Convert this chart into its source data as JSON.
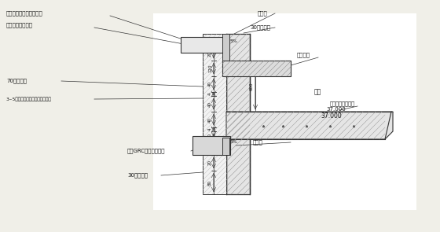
{
  "bg_color": "#f0efe8",
  "line_color": "#333333",
  "labels": {
    "top_left1": "成品聚苯板外墙装饰檐线",
    "top_left2": "装饰檐线轻钙支架",
    "mid_left1": "70厚岁棉板",
    "mid_left2": "3~5厚抚灰面层贴山东金属网格布",
    "bot_left1": "成品GRC外墙装饰檐线",
    "bot_left2": "30厚聚苯板",
    "top_mid1": "窗附框",
    "top_mid2": "30厚聚苯板",
    "right1": "面砖窗台",
    "right2": "卧室",
    "right3": "岐棹板专用锁固件",
    "right4": "37.000",
    "bot_mid2": "窗附框"
  }
}
